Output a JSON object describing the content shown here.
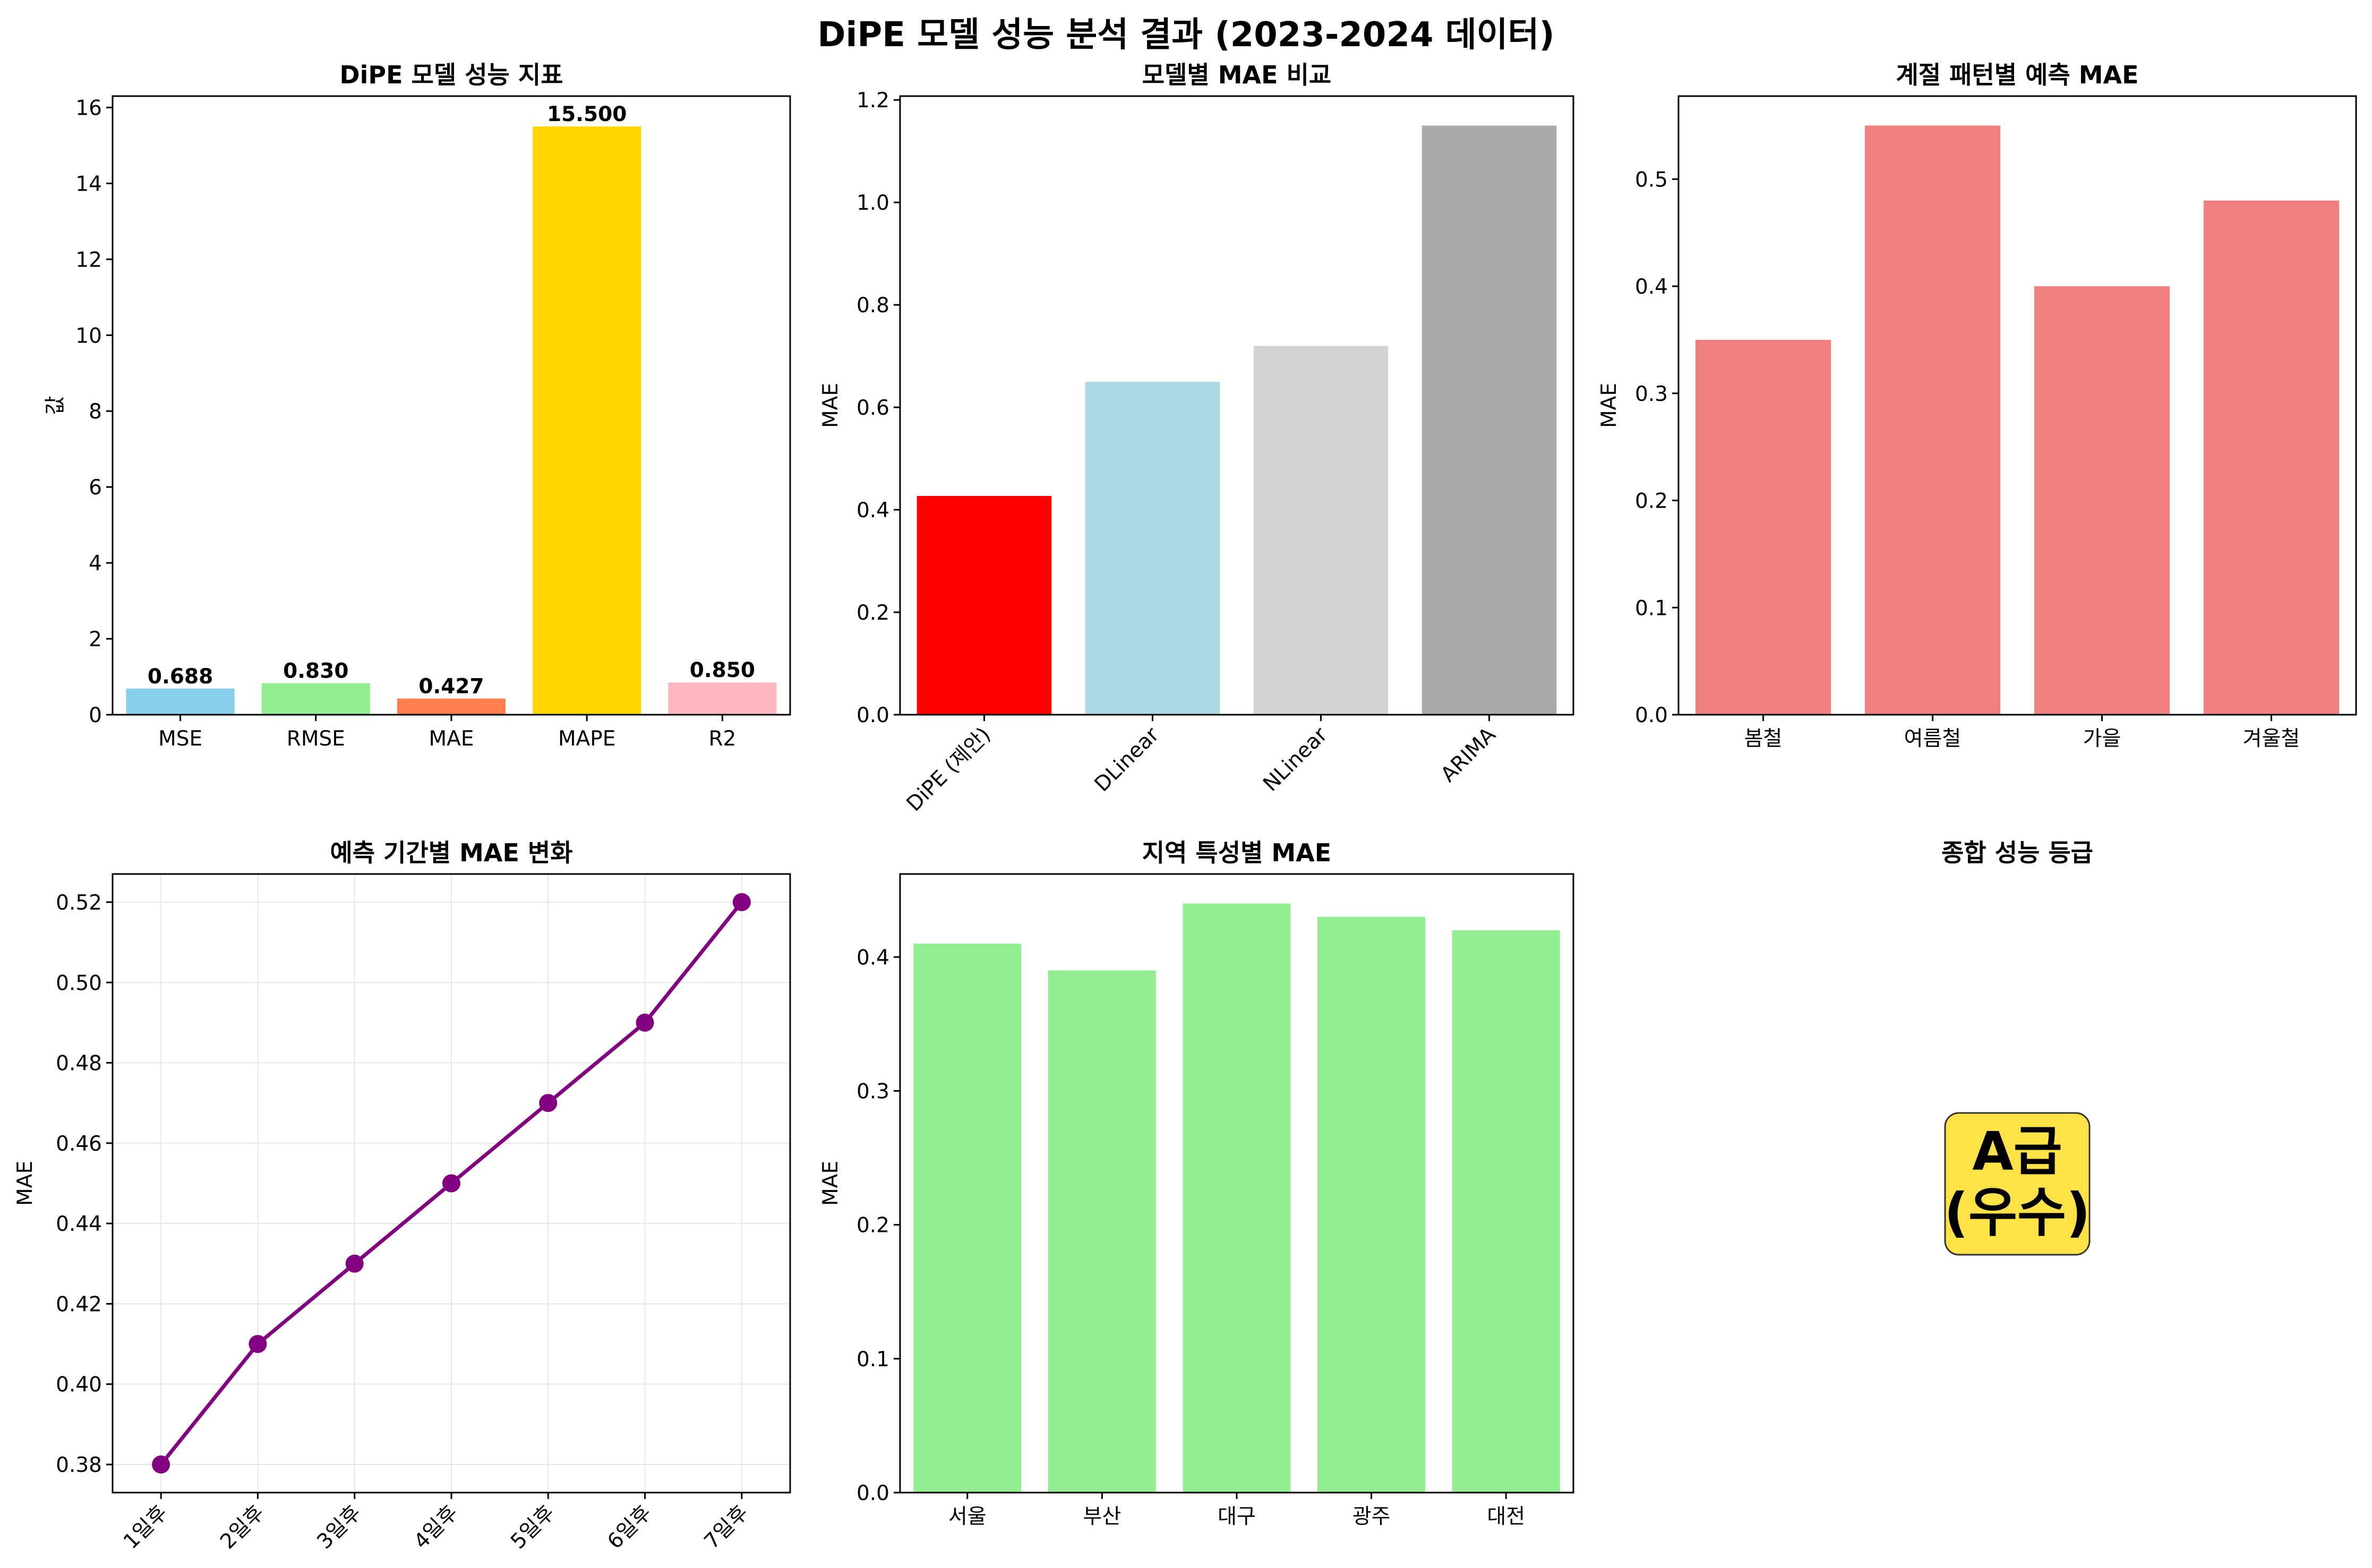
{
  "figure": {
    "title": "DiPE 모델 성능 분석 결과 (2023-2024 데이터)"
  },
  "chart_data": [
    {
      "id": "metrics",
      "type": "bar",
      "title": "DiPE 모델 성능 지표",
      "xlabel": "",
      "ylabel": "값",
      "categories": [
        "MSE",
        "RMSE",
        "MAE",
        "MAPE",
        "R2"
      ],
      "values": [
        0.688,
        0.83,
        0.427,
        15.5,
        0.85
      ],
      "value_labels": [
        "0.688",
        "0.830",
        "0.427",
        "15.500",
        "0.850"
      ],
      "colors": [
        "#87ceeb",
        "#90ee90",
        "#ff7f50",
        "#ffd700",
        "#ffb6c1"
      ],
      "ylim": [
        0,
        16.3
      ],
      "yticks": [
        0,
        2,
        4,
        6,
        8,
        10,
        12,
        14,
        16
      ],
      "grid": false
    },
    {
      "id": "model-compare",
      "type": "bar",
      "title": "모델별 MAE 비교",
      "xlabel": "",
      "ylabel": "MAE",
      "categories": [
        "DiPE (제안)",
        "DLinear",
        "NLinear",
        "ARIMA"
      ],
      "values": [
        0.427,
        0.65,
        0.72,
        1.15
      ],
      "colors": [
        "#ff0000",
        "#add8e6",
        "#d3d3d3",
        "#a9a9a9"
      ],
      "ylim": [
        0,
        1.2075
      ],
      "yticks": [
        0.0,
        0.2,
        0.4,
        0.6,
        0.8,
        1.0,
        1.2
      ],
      "xtick_rotation": 45,
      "grid": false
    },
    {
      "id": "season",
      "type": "bar",
      "title": "계절 패턴별 예측 MAE",
      "xlabel": "",
      "ylabel": "MAE",
      "categories": [
        "봄철",
        "여름철",
        "가을",
        "겨울철"
      ],
      "values": [
        0.35,
        0.55,
        0.4,
        0.48
      ],
      "colors": [
        "#f08080",
        "#f08080",
        "#f08080",
        "#f08080"
      ],
      "ylim": [
        0,
        0.5775
      ],
      "yticks": [
        0.0,
        0.1,
        0.2,
        0.3,
        0.4,
        0.5
      ],
      "grid": false
    },
    {
      "id": "horizon",
      "type": "line",
      "title": "예측 기간별 MAE 변화",
      "xlabel": "",
      "ylabel": "MAE",
      "categories": [
        "1일후",
        "2일후",
        "3일후",
        "4일후",
        "5일후",
        "6일후",
        "7일후"
      ],
      "values": [
        0.38,
        0.41,
        0.43,
        0.45,
        0.47,
        0.49,
        0.52
      ],
      "color": "#800080",
      "ylim": [
        0.373,
        0.527
      ],
      "yticks": [
        0.38,
        0.4,
        0.42,
        0.44,
        0.46,
        0.48,
        0.5,
        0.52
      ],
      "xtick_rotation": 45,
      "grid": true
    },
    {
      "id": "region",
      "type": "bar",
      "title": "지역 특성별 MAE",
      "xlabel": "",
      "ylabel": "MAE",
      "categories": [
        "서울",
        "부산",
        "대구",
        "광주",
        "대전"
      ],
      "values": [
        0.41,
        0.39,
        0.44,
        0.43,
        0.42
      ],
      "colors": [
        "#90ee90",
        "#90ee90",
        "#90ee90",
        "#90ee90",
        "#90ee90"
      ],
      "ylim": [
        0,
        0.462
      ],
      "yticks": [
        0.0,
        0.1,
        0.2,
        0.3,
        0.4
      ],
      "grid": false
    }
  ],
  "grade_panel": {
    "title": "종합 성능 등급",
    "grade_line1": "A급",
    "grade_line2": "(우수)",
    "box_color": "#ffd700"
  }
}
